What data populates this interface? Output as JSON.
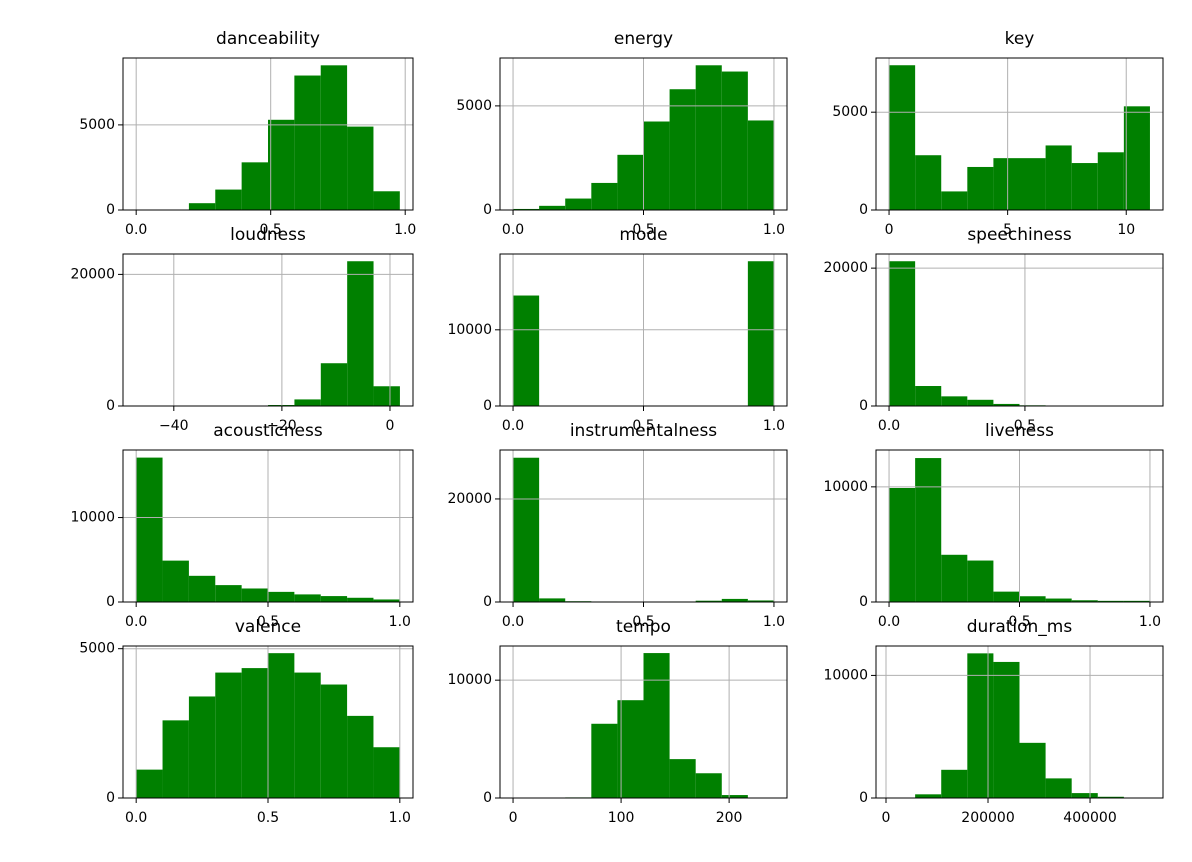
{
  "chart_data": [
    {
      "type": "histogram",
      "title": "danceability",
      "color": "#008000",
      "grid": true,
      "bins": [
        0,
        0.098,
        0.196,
        0.294,
        0.392,
        0.49,
        0.588,
        0.686,
        0.784,
        0.882,
        0.98
      ],
      "counts": [
        5,
        20,
        400,
        1200,
        2800,
        5300,
        7900,
        8500,
        4900,
        1100
      ],
      "xlim": [
        -0.049,
        1.029
      ],
      "ylim": [
        0,
        8930
      ],
      "xticks": [
        {
          "value": 0,
          "label": "0.0"
        },
        0.5,
        {
          "value": 1,
          "label": "1.0"
        }
      ],
      "yticks": [
        0,
        5000
      ]
    },
    {
      "type": "histogram",
      "title": "energy",
      "color": "#008000",
      "grid": true,
      "bins": [
        0,
        0.1,
        0.2,
        0.3,
        0.4,
        0.5,
        0.6,
        0.7,
        0.8,
        0.9,
        1
      ],
      "counts": [
        50,
        200,
        550,
        1300,
        2650,
        4250,
        5800,
        6950,
        6650,
        4300
      ],
      "xlim": [
        -0.05,
        1.05
      ],
      "ylim": [
        0,
        7300
      ],
      "xticks": [
        {
          "value": 0,
          "label": "0.0"
        },
        0.5,
        {
          "value": 1,
          "label": "1.0"
        }
      ],
      "yticks": [
        0,
        5000
      ]
    },
    {
      "type": "histogram",
      "title": "key",
      "color": "#008000",
      "grid": true,
      "bins": [
        0,
        1.1,
        2.2,
        3.3,
        4.4,
        5.5,
        6.6,
        7.7,
        8.8,
        9.9,
        11
      ],
      "counts": [
        7400,
        2800,
        950,
        2200,
        2650,
        2650,
        3300,
        2400,
        2950,
        5300
      ],
      "xlim": [
        -0.55,
        11.55
      ],
      "ylim": [
        0,
        7770
      ],
      "xticks": [
        0,
        5,
        10
      ],
      "yticks": [
        0,
        5000
      ]
    },
    {
      "type": "histogram",
      "title": "loudness",
      "color": "#008000",
      "grid": true,
      "bins": [
        -46.96,
        -42.08,
        -37.2,
        -32.32,
        -27.44,
        -22.56,
        -17.68,
        -12.8,
        -7.92,
        -3.04,
        1.84
      ],
      "counts": [
        5,
        5,
        10,
        20,
        50,
        150,
        1000,
        6500,
        22000,
        3000
      ],
      "xlim": [
        -49.4,
        4.26
      ],
      "ylim": [
        0,
        23100
      ],
      "xticks": [
        {
          "value": -40,
          "label": "−40"
        },
        {
          "value": -20,
          "label": "−20"
        },
        0
      ],
      "yticks": [
        0,
        20000
      ]
    },
    {
      "type": "histogram",
      "title": "mode",
      "color": "#008000",
      "grid": true,
      "bins": [
        0,
        0.1,
        0.2,
        0.3,
        0.4,
        0.5,
        0.6,
        0.7,
        0.8,
        0.9,
        1
      ],
      "counts": [
        14500,
        0,
        0,
        0,
        0,
        0,
        0,
        0,
        0,
        19000
      ],
      "xlim": [
        -0.05,
        1.05
      ],
      "ylim": [
        0,
        19950
      ],
      "xticks": [
        {
          "value": 0,
          "label": "0.0"
        },
        0.5,
        {
          "value": 1,
          "label": "1.0"
        }
      ],
      "yticks": [
        0,
        10000
      ]
    },
    {
      "type": "histogram",
      "title": "speechiness",
      "color": "#008000",
      "grid": true,
      "bins": [
        0,
        0.096,
        0.192,
        0.288,
        0.384,
        0.48,
        0.576,
        0.672,
        0.768,
        0.864,
        0.96
      ],
      "counts": [
        21000,
        2900,
        1400,
        900,
        300,
        100,
        50,
        30,
        20,
        50
      ],
      "xlim": [
        -0.048,
        1.008
      ],
      "ylim": [
        0,
        22050
      ],
      "xticks": [
        {
          "value": 0,
          "label": "0.0"
        },
        0.5
      ],
      "yticks": [
        0,
        20000
      ]
    },
    {
      "type": "histogram",
      "title": "acousticness",
      "color": "#008000",
      "grid": true,
      "bins": [
        0,
        0.1,
        0.2,
        0.3,
        0.4,
        0.5,
        0.6,
        0.7,
        0.8,
        0.9,
        1
      ],
      "counts": [
        17100,
        4900,
        3100,
        2000,
        1600,
        1200,
        900,
        700,
        500,
        300
      ],
      "xlim": [
        -0.05,
        1.05
      ],
      "ylim": [
        0,
        18000
      ],
      "xticks": [
        {
          "value": 0,
          "label": "0.0"
        },
        0.5,
        {
          "value": 1,
          "label": "1.0"
        }
      ],
      "yticks": [
        0,
        10000
      ]
    },
    {
      "type": "histogram",
      "title": "instrumentalness",
      "color": "#008000",
      "grid": true,
      "bins": [
        0,
        0.1,
        0.2,
        0.3,
        0.4,
        0.5,
        0.6,
        0.7,
        0.8,
        0.9,
        1
      ],
      "counts": [
        28000,
        700,
        150,
        100,
        80,
        80,
        100,
        250,
        600,
        300
      ],
      "xlim": [
        -0.05,
        1.05
      ],
      "ylim": [
        0,
        29500
      ],
      "xticks": [
        {
          "value": 0,
          "label": "0.0"
        },
        0.5,
        {
          "value": 1,
          "label": "1.0"
        }
      ],
      "yticks": [
        0,
        20000
      ]
    },
    {
      "type": "histogram",
      "title": "liveness",
      "color": "#008000",
      "grid": true,
      "bins": [
        0,
        0.1,
        0.2,
        0.3,
        0.4,
        0.5,
        0.6,
        0.7,
        0.8,
        0.9,
        1
      ],
      "counts": [
        9900,
        12500,
        4100,
        3600,
        900,
        500,
        300,
        150,
        100,
        100
      ],
      "xlim": [
        -0.05,
        1.05
      ],
      "ylim": [
        0,
        13200
      ],
      "xticks": [
        {
          "value": 0,
          "label": "0.0"
        },
        0.5,
        {
          "value": 1,
          "label": "1.0"
        }
      ],
      "yticks": [
        0,
        10000
      ]
    },
    {
      "type": "histogram",
      "title": "valence",
      "color": "#008000",
      "grid": true,
      "bins": [
        0,
        0.1,
        0.2,
        0.3,
        0.4,
        0.5,
        0.6,
        0.7,
        0.8,
        0.9,
        1
      ],
      "counts": [
        950,
        2600,
        3400,
        4200,
        4350,
        4850,
        4200,
        3800,
        2750,
        1700
      ],
      "xlim": [
        -0.05,
        1.05
      ],
      "ylim": [
        0,
        5090
      ],
      "xticks": [
        {
          "value": 0,
          "label": "0.0"
        },
        0.5,
        {
          "value": 1,
          "label": "1.0"
        }
      ],
      "yticks": [
        0,
        5000
      ]
    },
    {
      "type": "histogram",
      "title": "tempo",
      "color": "#008000",
      "grid": true,
      "bins": [
        0,
        24.15,
        48.3,
        72.45,
        96.6,
        120.75,
        144.9,
        169.05,
        193.2,
        217.35,
        241.5
      ],
      "counts": [
        5,
        5,
        50,
        6300,
        8300,
        12300,
        3300,
        2100,
        250,
        20
      ],
      "xlim": [
        -12.08,
        253.58
      ],
      "ylim": [
        0,
        12900
      ],
      "xticks": [
        0,
        100,
        200
      ],
      "yticks": [
        0,
        10000
      ]
    },
    {
      "type": "histogram",
      "title": "duration_ms",
      "color": "#008000",
      "grid": true,
      "bins": [
        5975,
        57125,
        108275,
        159425,
        210575,
        261725,
        312875,
        364025,
        415175,
        466325,
        517475
      ],
      "counts": [
        20,
        300,
        2300,
        11800,
        11100,
        4500,
        1600,
        400,
        100,
        30
      ],
      "xlim": [
        -19600,
        543050
      ],
      "ylim": [
        0,
        12400
      ],
      "xticks": [
        0,
        200000,
        400000
      ],
      "yticks": [
        0,
        10000
      ]
    }
  ]
}
